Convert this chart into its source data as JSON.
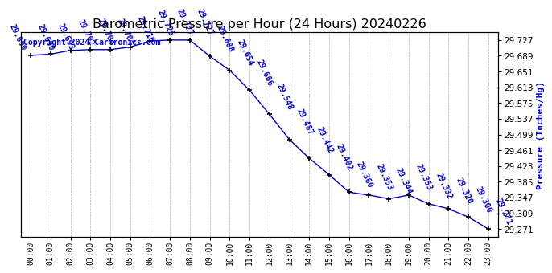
{
  "title": "Barometric Pressure per Hour (24 Hours) 20240226",
  "ylabel": "Pressure (Inches/Hg)",
  "copyright": "Copyright 2024 Cartronics.com",
  "hours": [
    "00:00",
    "01:00",
    "02:00",
    "03:00",
    "04:00",
    "05:00",
    "06:00",
    "07:00",
    "08:00",
    "09:00",
    "10:00",
    "11:00",
    "12:00",
    "13:00",
    "14:00",
    "15:00",
    "16:00",
    "17:00",
    "18:00",
    "19:00",
    "20:00",
    "21:00",
    "22:00",
    "23:00"
  ],
  "values": [
    29.69,
    29.693,
    29.702,
    29.704,
    29.704,
    29.71,
    29.725,
    29.727,
    29.727,
    29.688,
    29.654,
    29.606,
    29.548,
    29.487,
    29.442,
    29.402,
    29.36,
    29.353,
    29.344,
    29.353,
    29.332,
    29.32,
    29.3,
    29.271
  ],
  "line_color": "#0000CC",
  "marker_color": "#000000",
  "label_color": "#0000CC",
  "bg_color": "#ffffff",
  "grid_color": "#999999",
  "title_color": "#000000",
  "ylabel_color": "#0000CC",
  "copyright_color": "#0000CC",
  "ylim_min": 29.252,
  "ylim_max": 29.746,
  "yticks": [
    29.271,
    29.309,
    29.347,
    29.385,
    29.423,
    29.461,
    29.499,
    29.537,
    29.575,
    29.613,
    29.651,
    29.689,
    29.727
  ],
  "title_fontsize": 11.5,
  "annot_fontsize": 7,
  "ylabel_fontsize": 8,
  "copyright_fontsize": 7,
  "xtick_fontsize": 7,
  "ytick_fontsize": 7.5
}
